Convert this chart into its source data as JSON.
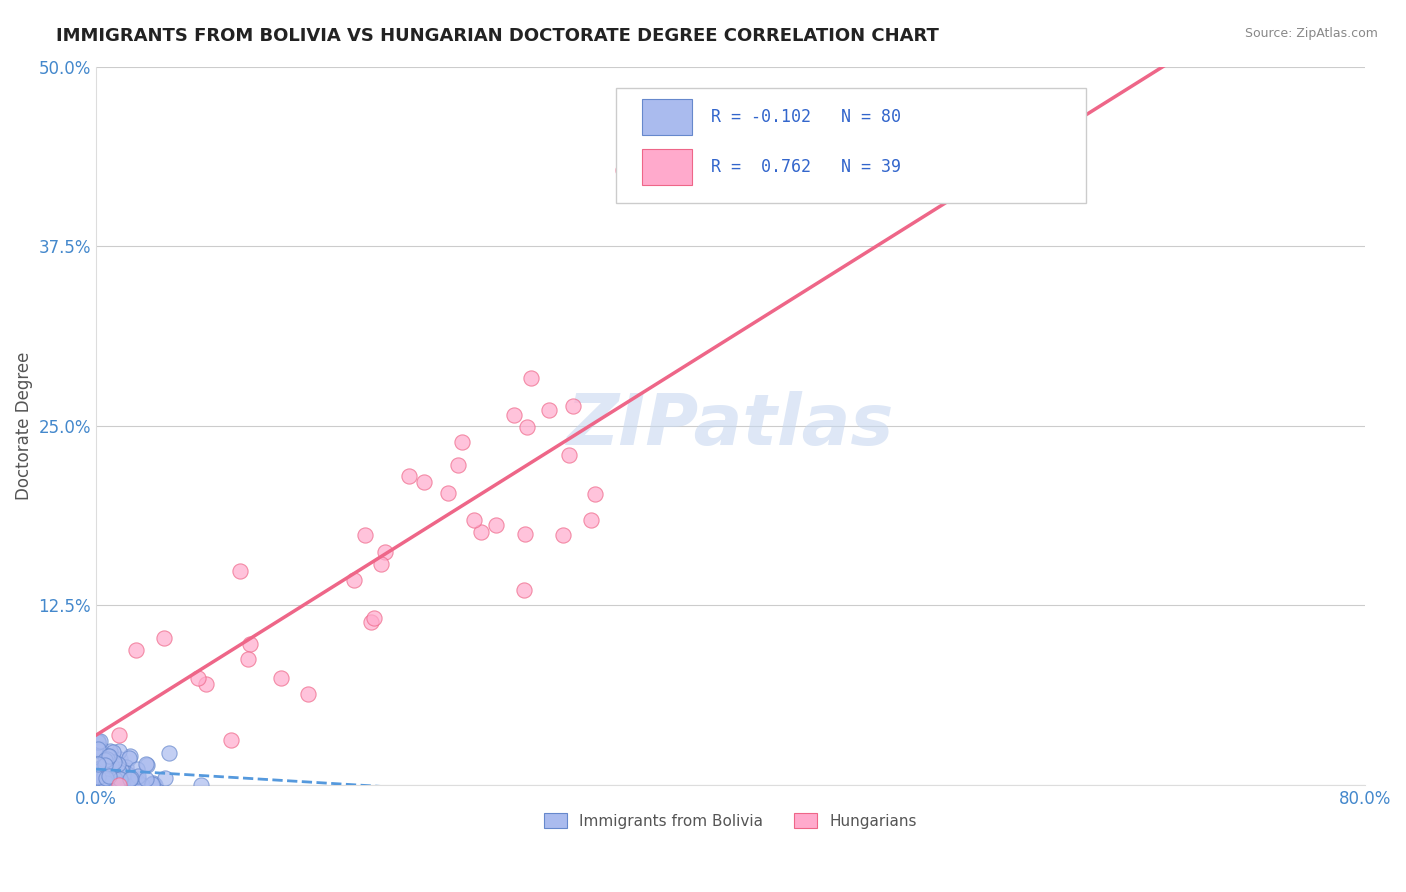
{
  "title": "IMMIGRANTS FROM BOLIVIA VS HUNGARIAN DOCTORATE DEGREE CORRELATION CHART",
  "source": "Source: ZipAtlas.com",
  "ylabel": "Doctorate Degree",
  "xlim": [
    0.0,
    0.8
  ],
  "ylim": [
    0.0,
    0.5
  ],
  "xticks": [
    0.0,
    0.1,
    0.2,
    0.3,
    0.4,
    0.5,
    0.6,
    0.7,
    0.8
  ],
  "xticklabels": [
    "0.0%",
    "",
    "",
    "",
    "",
    "",
    "",
    "",
    "80.0%"
  ],
  "yticks": [
    0.0,
    0.125,
    0.25,
    0.375,
    0.5
  ],
  "yticklabels": [
    "",
    "12.5%",
    "25.0%",
    "37.5%",
    "50.0%"
  ],
  "grid_color": "#cccccc",
  "background_color": "#ffffff",
  "title_color": "#222222",
  "title_fontsize": 13,
  "axis_label_color": "#555555",
  "tick_label_color": "#4488cc",
  "source_color": "#888888",
  "watermark_color": "#c8d8f0",
  "bolivia_color": "#aabbee",
  "bolivia_edge_color": "#6688cc",
  "hungary_color": "#ffaacc",
  "hungary_edge_color": "#ee6688",
  "legend_r1": "R = -0.102",
  "legend_n1": "N = 80",
  "legend_r2": "R =  0.762",
  "legend_n2": "N = 39",
  "legend_color": "#3366cc",
  "bolivia_R": -0.102,
  "hungary_R": 0.762,
  "bolivia_N": 80,
  "hungary_N": 39
}
